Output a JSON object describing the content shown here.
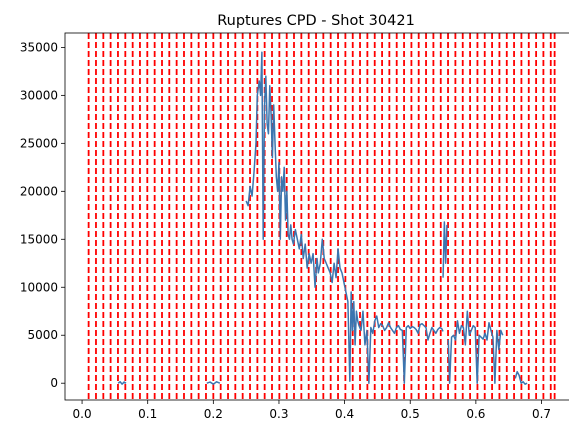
{
  "chart_data": {
    "type": "line",
    "title": "Ruptures CPD - Shot 30421",
    "xlabel": "",
    "ylabel": "",
    "xlim": [
      -0.026,
      0.748
    ],
    "ylim": [
      -1750,
      36500
    ],
    "x_ticks": [
      0.0,
      0.1,
      0.2,
      0.3,
      0.4,
      0.5,
      0.6,
      0.7
    ],
    "x_tick_labels": [
      "0.0",
      "0.1",
      "0.2",
      "0.3",
      "0.4",
      "0.5",
      "0.6",
      "0.7"
    ],
    "y_ticks": [
      0,
      5000,
      10000,
      15000,
      20000,
      25000,
      30000,
      35000
    ],
    "y_tick_labels": [
      "0",
      "5000",
      "10000",
      "15000",
      "20000",
      "25000",
      "30000",
      "35000"
    ],
    "grid": false,
    "colors": {
      "signal": "#3b75af",
      "changepoint": "#ff0000"
    },
    "changepoints": {
      "style": "dashed",
      "x": [
        0.01,
        0.0212,
        0.0324,
        0.0435,
        0.0547,
        0.0659,
        0.0771,
        0.0882,
        0.0994,
        0.1106,
        0.1218,
        0.1329,
        0.1441,
        0.1553,
        0.1665,
        0.1776,
        0.1888,
        0.2,
        0.2112,
        0.2224,
        0.2335,
        0.2447,
        0.2559,
        0.2671,
        0.2782,
        0.2894,
        0.3006,
        0.3118,
        0.3229,
        0.3341,
        0.3453,
        0.3565,
        0.3676,
        0.3788,
        0.39,
        0.4012,
        0.4124,
        0.4235,
        0.4347,
        0.4459,
        0.4571,
        0.4682,
        0.4794,
        0.4906,
        0.5018,
        0.5129,
        0.5241,
        0.5353,
        0.5465,
        0.5576,
        0.5688,
        0.58,
        0.5912,
        0.6024,
        0.6135,
        0.6247,
        0.6359,
        0.6471,
        0.6582,
        0.6694,
        0.6806,
        0.6918,
        0.7029,
        0.7141,
        0.72
      ]
    },
    "series": [
      {
        "x": [
          0.055,
          0.058,
          0.061,
          0.064,
          0.067
        ],
        "y": [
          0,
          150,
          -100,
          120,
          0
        ]
      },
      {
        "x": [
          0.19,
          0.195,
          0.2,
          0.205,
          0.21
        ],
        "y": [
          0,
          120,
          -100,
          150,
          0
        ]
      },
      {
        "x": [
          0.25,
          0.253,
          0.256,
          0.259,
          0.262,
          0.265,
          0.267,
          0.27,
          0.272,
          0.274,
          0.276,
          0.278,
          0.28,
          0.282,
          0.284,
          0.286,
          0.288,
          0.29,
          0.292,
          0.294,
          0.296,
          0.298,
          0.3,
          0.302,
          0.304,
          0.306,
          0.308,
          0.31,
          0.312,
          0.314,
          0.316,
          0.318,
          0.32,
          0.322,
          0.325,
          0.328,
          0.331,
          0.334,
          0.337,
          0.34,
          0.343,
          0.346,
          0.349,
          0.352,
          0.355,
          0.358,
          0.36,
          0.363,
          0.366,
          0.369,
          0.372,
          0.375,
          0.378,
          0.381,
          0.384,
          0.387,
          0.39,
          0.393,
          0.396,
          0.399,
          0.402,
          0.405,
          0.408,
          0.41,
          0.412,
          0.414,
          0.416,
          0.418,
          0.42,
          0.422,
          0.425,
          0.428,
          0.431,
          0.434,
          0.437,
          0.44,
          0.443,
          0.446,
          0.449,
          0.452,
          0.455,
          0.458,
          0.461,
          0.464,
          0.467,
          0.47,
          0.473,
          0.476,
          0.479,
          0.482,
          0.485,
          0.488,
          0.491,
          0.494,
          0.497,
          0.5,
          0.503,
          0.506,
          0.509,
          0.512,
          0.515,
          0.518,
          0.521,
          0.524,
          0.527,
          0.53,
          0.533,
          0.536,
          0.539,
          0.542,
          0.545,
          0.548,
          0.55
        ],
        "y": [
          19000,
          18500,
          20500,
          19500,
          22000,
          25000,
          30000,
          31500,
          30000,
          34500,
          15000,
          29000,
          32000,
          27000,
          26000,
          31000,
          28000,
          23500,
          29000,
          25000,
          21500,
          20000,
          23000,
          15000,
          21500,
          20000,
          22500,
          17000,
          20000,
          15500,
          15000,
          16500,
          15000,
          14500,
          16000,
          15000,
          14000,
          15500,
          13000,
          14500,
          12000,
          13500,
          12500,
          13500,
          10000,
          13000,
          11500,
          12500,
          15000,
          13000,
          12500,
          12000,
          11500,
          10500,
          12500,
          11000,
          14000,
          12000,
          11500,
          10500,
          9500,
          8500,
          200,
          9500,
          5500,
          8500,
          4000,
          7500,
          6500,
          6000,
          5500,
          7500,
          4000,
          5500,
          0,
          5800,
          5200,
          6500,
          7000,
          5800,
          6200,
          6000,
          5500,
          5800,
          6300,
          5800,
          5500,
          5200,
          5800,
          6000,
          5600,
          5500,
          0,
          5800,
          6000,
          5700,
          5900,
          5800,
          5600,
          5200,
          6100,
          6200,
          6000,
          5800,
          4500,
          5200,
          5800,
          5500,
          5200,
          5600,
          5800,
          5700,
          5400
        ]
      },
      {
        "x": [
          0.55,
          0.552,
          0.554,
          0.556
        ],
        "y": [
          11000,
          16800,
          12500,
          16500
        ]
      },
      {
        "x": [
          0.558,
          0.56,
          0.563,
          0.566,
          0.569,
          0.572,
          0.575,
          0.578,
          0.581,
          0.584,
          0.587,
          0.59,
          0.593,
          0.596,
          0.599,
          0.602,
          0.605,
          0.608,
          0.611,
          0.614,
          0.617,
          0.62,
          0.623,
          0.626,
          0.629,
          0.632,
          0.635,
          0.638,
          0.641
        ],
        "y": [
          4500,
          0,
          4800,
          5000,
          4500,
          6500,
          5200,
          6000,
          5800,
          4000,
          7500,
          5000,
          5500,
          6000,
          5800,
          0,
          5000,
          4800,
          4600,
          5200,
          4500,
          6300,
          5500,
          4800,
          0,
          5500,
          3500,
          5500,
          5000
        ]
      },
      {
        "x": [
          0.66,
          0.663,
          0.666,
          0.669,
          0.672,
          0.675,
          0.678
        ],
        "y": [
          500,
          1200,
          800,
          0,
          150,
          -100,
          0
        ]
      }
    ]
  }
}
